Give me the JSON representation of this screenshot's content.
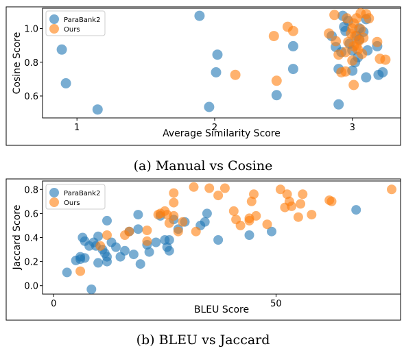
{
  "colors": {
    "parabank2": "#1f77b4",
    "ours": "#ff7f0e"
  },
  "chart_data": [
    {
      "type": "scatter",
      "caption": "(a) Manual vs Cosine",
      "xlabel": "Average Similarity Score",
      "ylabel": "Cosine Score",
      "xlim": [
        0.75,
        3.35
      ],
      "ylim": [
        0.47,
        1.12
      ],
      "xticks": [
        1,
        2,
        3
      ],
      "xtick_labels": [
        "1",
        "2",
        "3"
      ],
      "yticks": [
        0.6,
        0.8,
        1.0
      ],
      "ytick_labels": [
        "0.6",
        "0.8",
        "1.0"
      ],
      "legend": {
        "placement": "top-left",
        "entries": [
          "ParaBank2",
          "Ours"
        ]
      },
      "series": [
        {
          "name": "ParaBank2",
          "color": "#1f77b4",
          "points": [
            [
              0.89,
              0.875
            ],
            [
              0.92,
              0.675
            ],
            [
              1.15,
              0.52
            ],
            [
              1.89,
              1.075
            ],
            [
              1.96,
              0.535
            ],
            [
              2.02,
              0.845
            ],
            [
              2.01,
              0.74
            ],
            [
              2.45,
              0.605
            ],
            [
              2.57,
              0.895
            ],
            [
              2.57,
              0.76
            ],
            [
              2.85,
              0.955
            ],
            [
              2.88,
              0.89
            ],
            [
              2.92,
              0.86
            ],
            [
              2.9,
              0.76
            ],
            [
              2.95,
              0.985
            ],
            [
              2.97,
              1.045
            ],
            [
              3.0,
              0.87
            ],
            [
              3.05,
              0.935
            ],
            [
              3.02,
              0.8
            ],
            [
              2.94,
              1.01
            ],
            [
              3.05,
              1.0
            ],
            [
              3.08,
              0.98
            ],
            [
              3.11,
              0.87
            ],
            [
              3.1,
              1.055
            ],
            [
              3.18,
              0.895
            ],
            [
              3.22,
              0.74
            ],
            [
              3.19,
              0.725
            ],
            [
              3.1,
              0.71
            ],
            [
              3.0,
              0.75
            ],
            [
              2.9,
              0.55
            ],
            [
              2.93,
              1.075
            ],
            [
              3.04,
              0.83
            ],
            [
              2.98,
              0.91
            ],
            [
              3.03,
              0.955
            ]
          ]
        },
        {
          "name": "Ours",
          "color": "#ff7f0e",
          "points": [
            [
              2.15,
              0.725
            ],
            [
              2.43,
              0.955
            ],
            [
              2.45,
              0.69
            ],
            [
              2.53,
              1.01
            ],
            [
              2.57,
              0.985
            ],
            [
              2.83,
              0.97
            ],
            [
              2.87,
              1.08
            ],
            [
              2.88,
              0.925
            ],
            [
              2.9,
              0.845
            ],
            [
              2.92,
              0.74
            ],
            [
              2.95,
              0.745
            ],
            [
              2.97,
              0.92
            ],
            [
              2.99,
              0.97
            ],
            [
              3.0,
              1.0
            ],
            [
              3.01,
              1.03
            ],
            [
              3.02,
              0.955
            ],
            [
              3.03,
              0.9
            ],
            [
              3.04,
              0.875
            ],
            [
              3.05,
              0.93
            ],
            [
              3.06,
              1.09
            ],
            [
              3.07,
              0.85
            ],
            [
              3.08,
              0.945
            ],
            [
              3.1,
              1.085
            ],
            [
              3.12,
              1.06
            ],
            [
              3.18,
              0.92
            ],
            [
              3.2,
              0.82
            ],
            [
              3.24,
              0.815
            ],
            [
              2.96,
              1.06
            ],
            [
              3.01,
              0.665
            ],
            [
              3.0,
              0.81
            ],
            [
              2.95,
              0.86
            ],
            [
              3.03,
              1.06
            ],
            [
              3.06,
              0.995
            ],
            [
              3.01,
              0.895
            ]
          ]
        }
      ]
    },
    {
      "type": "scatter",
      "caption": "(b) BLEU vs Jaccard",
      "xlabel": "BLEU Score",
      "ylabel": "Jaccard Score",
      "xlim": [
        -2.5,
        78
      ],
      "ylim": [
        -0.07,
        0.87
      ],
      "xticks": [
        0,
        50
      ],
      "xtick_labels": [
        "0",
        "50"
      ],
      "yticks": [
        0.0,
        0.2,
        0.4,
        0.6,
        0.8
      ],
      "ytick_labels": [
        "0.0",
        "0.2",
        "0.4",
        "0.6",
        "0.8"
      ],
      "legend": {
        "placement": "top-left",
        "entries": [
          "ParaBank2",
          "Ours"
        ]
      },
      "series": [
        {
          "name": "ParaBank2",
          "color": "#1f77b4",
          "points": [
            [
              3,
              0.11
            ],
            [
              5,
              0.21
            ],
            [
              6,
              0.24
            ],
            [
              6,
              0.22
            ],
            [
              6.5,
              0.4
            ],
            [
              7,
              0.23
            ],
            [
              7,
              0.37
            ],
            [
              8.5,
              -0.03
            ],
            [
              8,
              0.33
            ],
            [
              9,
              0.36
            ],
            [
              10,
              0.41
            ],
            [
              10,
              0.19
            ],
            [
              11,
              0.3
            ],
            [
              11.5,
              0.27
            ],
            [
              12,
              0.54
            ],
            [
              12,
              0.24
            ],
            [
              12,
              0.2
            ],
            [
              13,
              0.36
            ],
            [
              15,
              0.24
            ],
            [
              16,
              0.29
            ],
            [
              17,
              0.45
            ],
            [
              18,
              0.26
            ],
            [
              19,
              0.47
            ],
            [
              19,
              0.59
            ],
            [
              19.5,
              0.18
            ],
            [
              21,
              0.34
            ],
            [
              21.5,
              0.28
            ],
            [
              23,
              0.36
            ],
            [
              24,
              0.58
            ],
            [
              25,
              0.38
            ],
            [
              26,
              0.29
            ],
            [
              25.5,
              0.32
            ],
            [
              26,
              0.38
            ],
            [
              27,
              0.55
            ],
            [
              28,
              0.47
            ],
            [
              29.5,
              0.53
            ],
            [
              33,
              0.5
            ],
            [
              34,
              0.53
            ],
            [
              34.5,
              0.6
            ],
            [
              37,
              0.38
            ],
            [
              44,
              0.42
            ],
            [
              49,
              0.45
            ],
            [
              68,
              0.63
            ],
            [
              9.5,
              0.33
            ],
            [
              14,
              0.32
            ]
          ]
        },
        {
          "name": "Ours",
          "color": "#ff7f0e",
          "points": [
            [
              6,
              0.12
            ],
            [
              10.5,
              0.33
            ],
            [
              12,
              0.42
            ],
            [
              16,
              0.42
            ],
            [
              17,
              0.45
            ],
            [
              21,
              0.37
            ],
            [
              21,
              0.46
            ],
            [
              23.5,
              0.59
            ],
            [
              24,
              0.6
            ],
            [
              25,
              0.62
            ],
            [
              25.5,
              0.59
            ],
            [
              26,
              0.52
            ],
            [
              27,
              0.58
            ],
            [
              27,
              0.69
            ],
            [
              27,
              0.77
            ],
            [
              28,
              0.45
            ],
            [
              29,
              0.53
            ],
            [
              31.5,
              0.82
            ],
            [
              32,
              0.45
            ],
            [
              35,
              0.81
            ],
            [
              37,
              0.75
            ],
            [
              38.5,
              0.81
            ],
            [
              40.5,
              0.62
            ],
            [
              41,
              0.55
            ],
            [
              42,
              0.5
            ],
            [
              44,
              0.54
            ],
            [
              44,
              0.56
            ],
            [
              44.5,
              0.7
            ],
            [
              45,
              0.76
            ],
            [
              45.5,
              0.58
            ],
            [
              48,
              0.51
            ],
            [
              51,
              0.8
            ],
            [
              52,
              0.65
            ],
            [
              52.5,
              0.76
            ],
            [
              53,
              0.7
            ],
            [
              53.5,
              0.66
            ],
            [
              55,
              0.57
            ],
            [
              55.5,
              0.68
            ],
            [
              56,
              0.76
            ],
            [
              58,
              0.59
            ],
            [
              62,
              0.71
            ],
            [
              62.5,
              0.7
            ],
            [
              76,
              0.8
            ]
          ]
        }
      ]
    }
  ]
}
